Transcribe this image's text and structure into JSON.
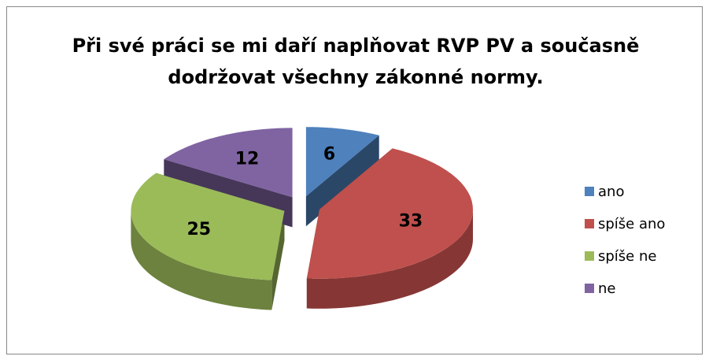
{
  "chart_data": {
    "type": "pie",
    "title": "Při své práci se mi daří naplňovat RVP PV a současně dodržovat všechny zákonné normy.",
    "categories": [
      "ano",
      "spíše ano",
      "spíše ne",
      "ne"
    ],
    "values": [
      6,
      33,
      25,
      12
    ],
    "colors": [
      "#4f81bd",
      "#c0504d",
      "#9bbb59",
      "#8064a2"
    ],
    "legend": "right"
  }
}
